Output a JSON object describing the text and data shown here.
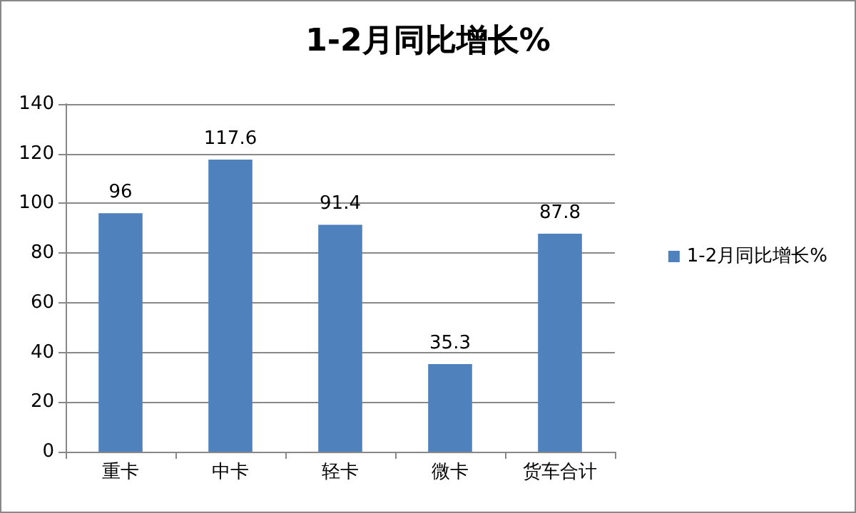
{
  "chart_data": {
    "type": "bar",
    "title": "1-2月同比增长%",
    "categories": [
      "重卡",
      "中卡",
      "轻卡",
      "微卡",
      "货车合计"
    ],
    "series": [
      {
        "name": "1-2月同比增长%",
        "color": "#4f81bd",
        "values": [
          96,
          117.6,
          91.4,
          35.3,
          87.8
        ]
      }
    ],
    "ylim": [
      0,
      140
    ],
    "yticks": [
      0,
      20,
      40,
      60,
      80,
      100,
      120,
      140
    ],
    "grid": "y",
    "legend": "right",
    "data_labels": true
  }
}
